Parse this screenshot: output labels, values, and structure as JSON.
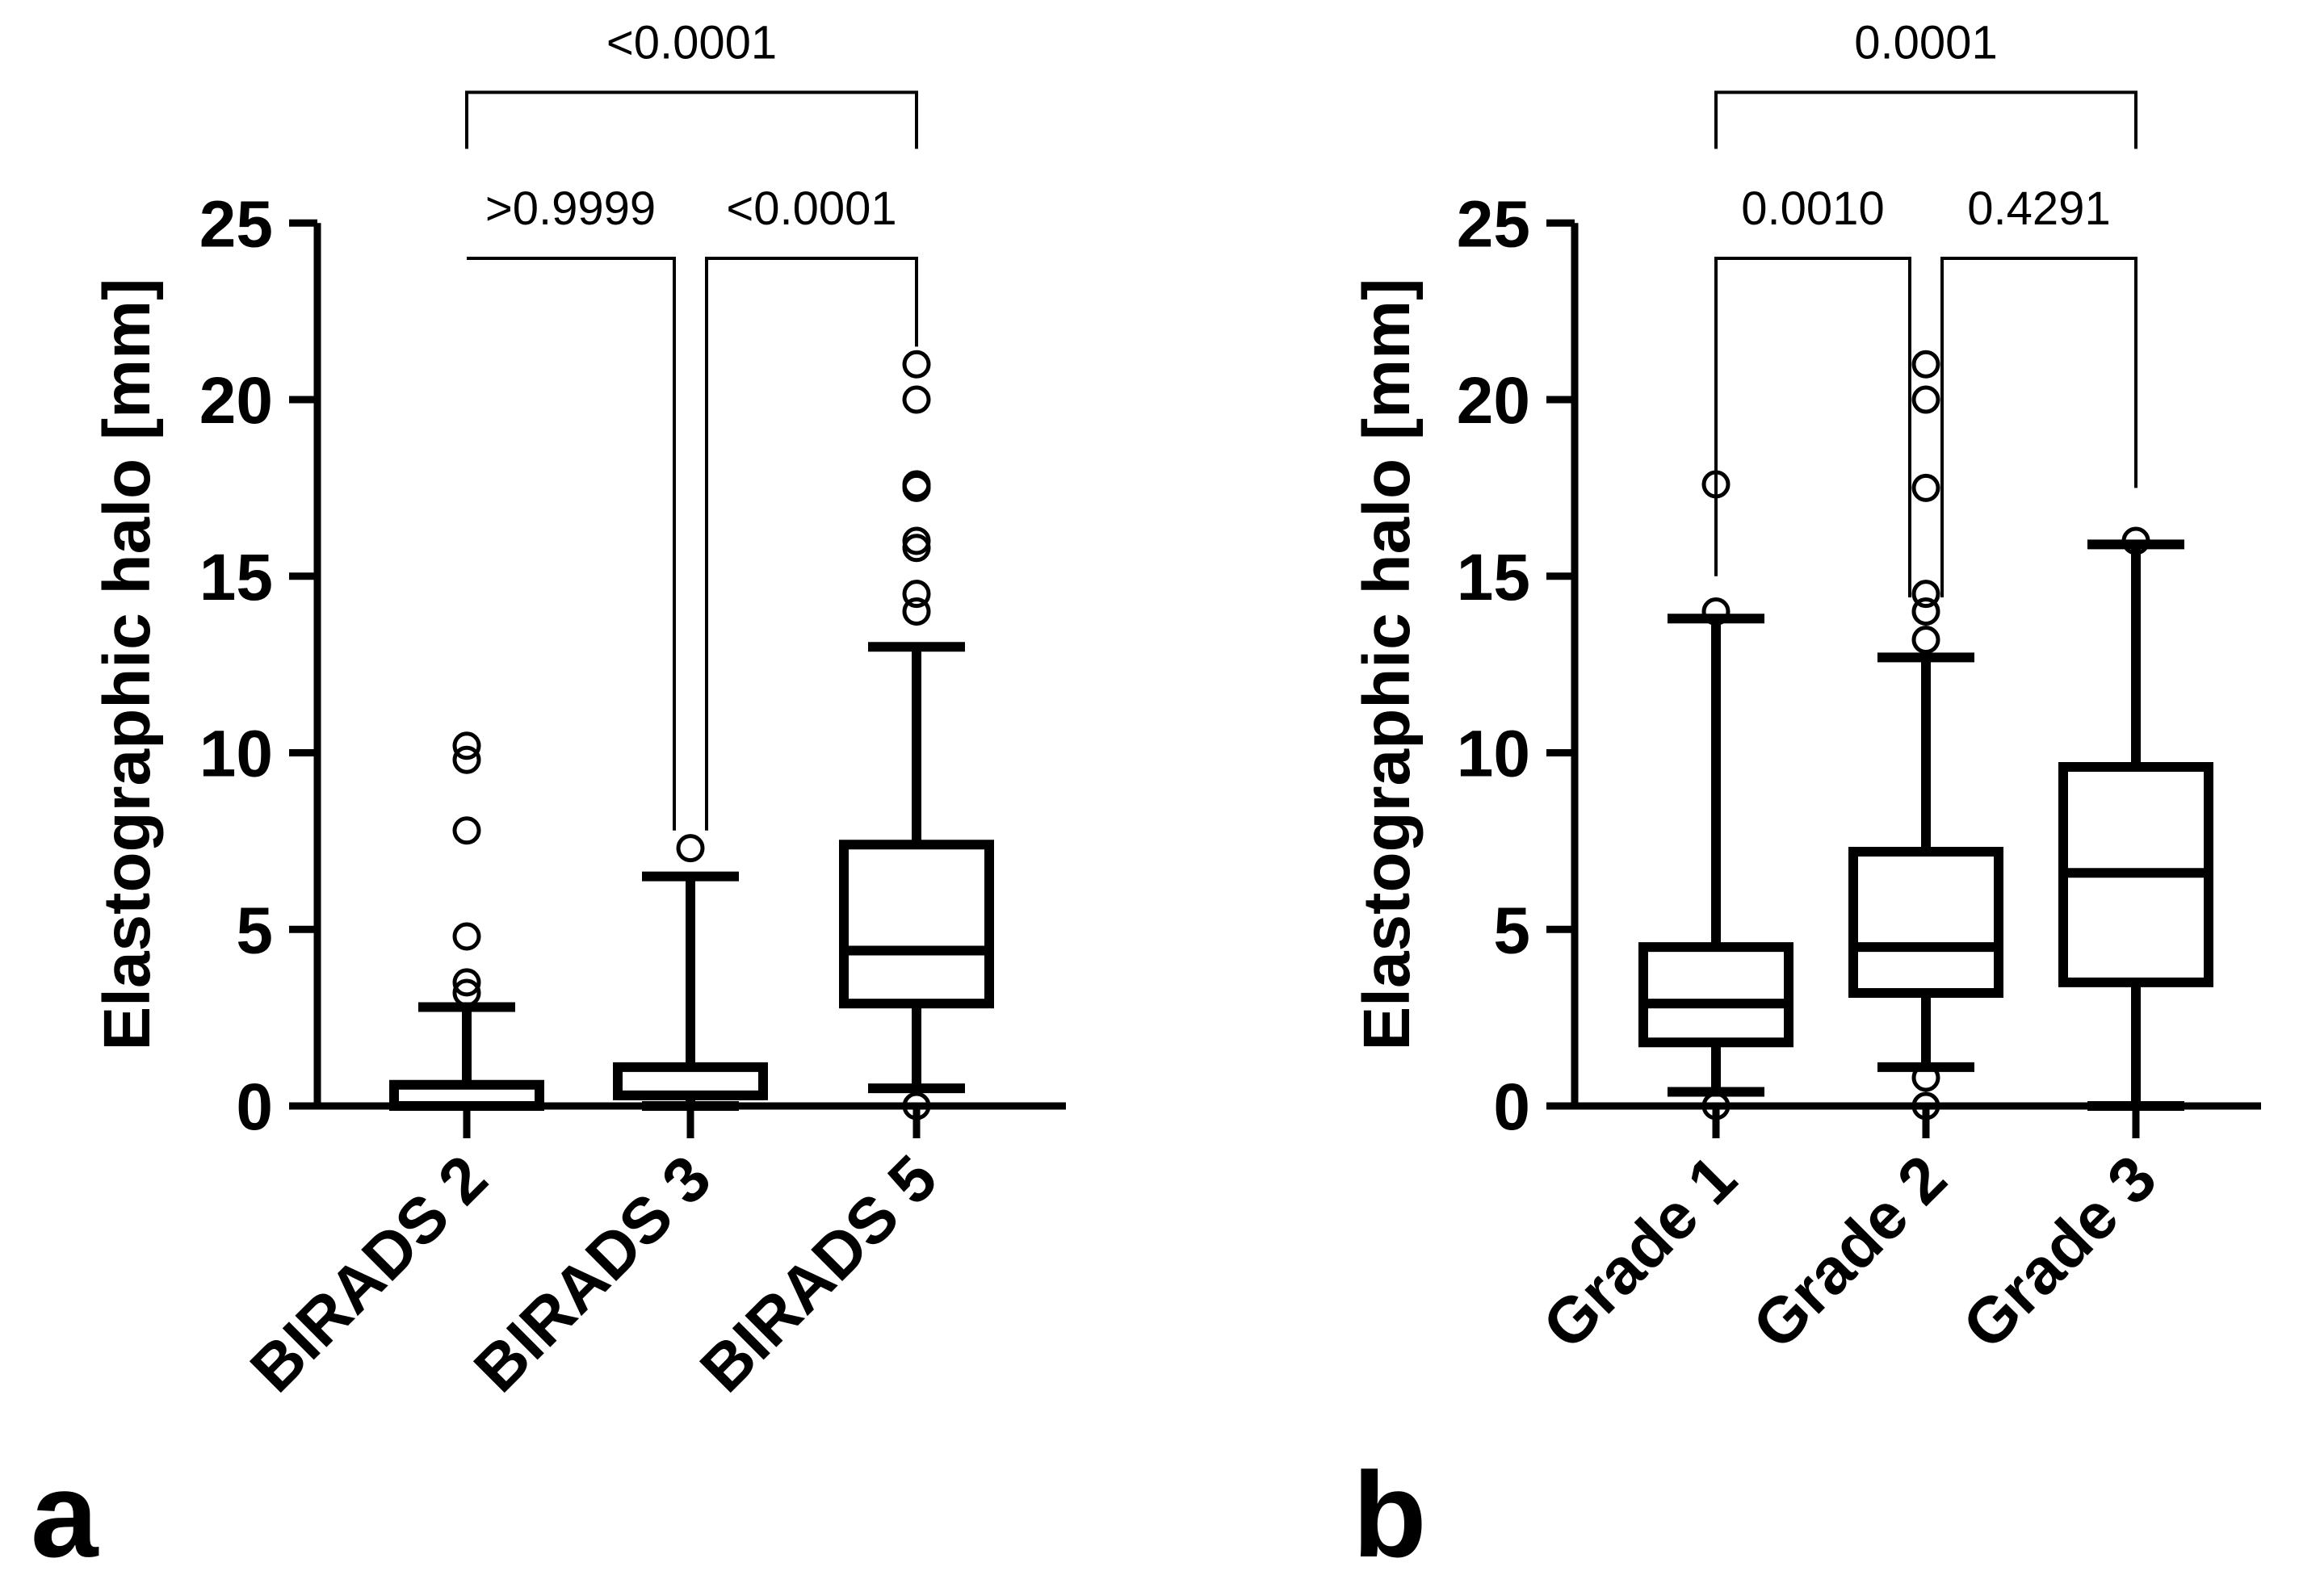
{
  "chart_data": [
    {
      "panel": "a",
      "type": "box",
      "ylabel": "Elastographic halo [mm]",
      "ylim": [
        0,
        25
      ],
      "yticks": [
        0,
        5,
        10,
        15,
        20,
        25
      ],
      "categories": [
        "BIRADS 2",
        "BIRADS 3",
        "BIRADS 5"
      ],
      "boxes": [
        {
          "label": "BIRADS 2",
          "whisker_low": 0,
          "q1": 0,
          "median": 0,
          "q3": 0.6,
          "whisker_high": 2.8,
          "outliers": [
            3.2,
            3.5,
            4.8,
            7.8,
            9.8,
            10.2
          ]
        },
        {
          "label": "BIRADS 3",
          "whisker_low": 0,
          "q1": 0.3,
          "median": 0.3,
          "q3": 1.1,
          "whisker_high": 6.5,
          "outliers": [
            7.3
          ]
        },
        {
          "label": "BIRADS 5",
          "whisker_low": 0.5,
          "q1": 2.9,
          "median": 4.4,
          "q3": 7.4,
          "whisker_high": 13.0,
          "outliers": [
            0,
            14.0,
            14.5,
            15.8,
            16.0,
            17.5,
            17.6,
            20.0,
            21.0
          ]
        }
      ],
      "comparisons": [
        {
          "from": "BIRADS 2",
          "to": "BIRADS 3",
          "p": ">0.9999",
          "y_top": 24.0,
          "end_from": 24.0,
          "end_to": 7.8
        },
        {
          "from": "BIRADS 3",
          "to": "BIRADS 5",
          "p": "<0.0001",
          "y_top": 24.0,
          "end_from": 7.8,
          "end_to": 21.5
        },
        {
          "from": "BIRADS 2",
          "to": "BIRADS 5",
          "p": "<0.0001",
          "y_top": 28.7,
          "end_from": 27.1,
          "end_to": 27.1
        }
      ]
    },
    {
      "panel": "b",
      "type": "box",
      "ylabel": "Elastographic halo [mm]",
      "ylim": [
        0,
        25
      ],
      "yticks": [
        0,
        5,
        10,
        15,
        20,
        25
      ],
      "categories": [
        "Grade 1",
        "Grade 2",
        "Grade 3"
      ],
      "boxes": [
        {
          "label": "Grade 1",
          "whisker_low": 0.4,
          "q1": 1.8,
          "median": 2.9,
          "q3": 4.5,
          "whisker_high": 13.8,
          "outliers": [
            0,
            14.0,
            17.6
          ]
        },
        {
          "label": "Grade 2",
          "whisker_low": 1.1,
          "q1": 3.2,
          "median": 4.5,
          "q3": 7.2,
          "whisker_high": 12.7,
          "outliers": [
            0,
            0.8,
            13.2,
            14.0,
            14.5,
            17.5,
            20.0,
            21.0
          ]
        },
        {
          "label": "Grade 3",
          "whisker_low": 0,
          "q1": 3.5,
          "median": 6.6,
          "q3": 9.6,
          "whisker_high": 15.9,
          "outliers": [
            16.0
          ]
        }
      ],
      "comparisons": [
        {
          "from": "Grade 1",
          "to": "Grade 2",
          "p": "0.0010",
          "y_top": 24.0,
          "end_from": 15.0,
          "end_to": 14.4
        },
        {
          "from": "Grade 2",
          "to": "Grade 3",
          "p": "0.4291",
          "y_top": 24.0,
          "end_from": 14.4,
          "end_to": 17.5
        },
        {
          "from": "Grade 1",
          "to": "Grade 3",
          "p": "0.0001",
          "y_top": 28.7,
          "end_from": 27.1,
          "end_to": 27.1
        }
      ]
    }
  ]
}
